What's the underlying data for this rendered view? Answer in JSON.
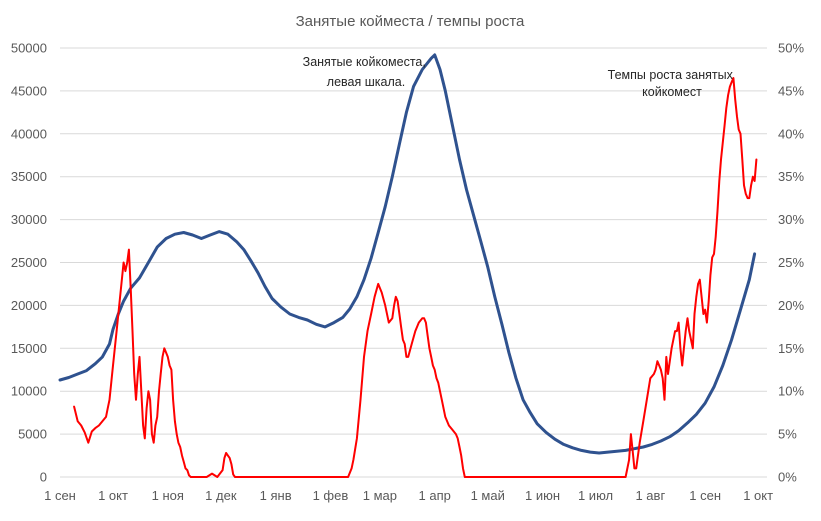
{
  "chart_data": {
    "type": "line",
    "title": "Занятые койместа / темпы роста",
    "x_axis": {
      "tick_labels": [
        "1 сен",
        "1 окт",
        "1 ноя",
        "1 дек",
        "1 янв",
        "1 фев",
        "1 мар",
        "1 апр",
        "1 май",
        "1 июн",
        "1 июл",
        "1 авг",
        "1 сен",
        "1 окт"
      ],
      "tick_day_index": [
        0,
        30,
        61,
        91,
        122,
        153,
        181,
        212,
        242,
        273,
        303,
        334,
        365,
        395
      ],
      "range_days": [
        0,
        400
      ]
    },
    "y_axis_left": {
      "min": 0,
      "max": 50000,
      "step": 5000,
      "tick_labels": [
        "0",
        "5000",
        "10000",
        "15000",
        "20000",
        "25000",
        "30000",
        "35000",
        "40000",
        "45000",
        "50000"
      ]
    },
    "y_axis_right": {
      "min": 0,
      "max": 0.5,
      "step": 0.05,
      "tick_labels": [
        "0%",
        "5%",
        "10%",
        "15%",
        "20%",
        "25%",
        "30%",
        "35%",
        "40%",
        "45%",
        "50%"
      ]
    },
    "grid": "horizontal",
    "colors": {
      "occupied": "#2f528f",
      "growth": "#ff0000",
      "grid": "#d9d9d9",
      "text": "#595959"
    },
    "annotations": [
      {
        "lines": [
          "Занятые койкоместа,",
          "левая шкала."
        ],
        "series": "occupied"
      },
      {
        "lines": [
          "Темпы роста занятых",
          "койкомест"
        ],
        "series": "growth"
      }
    ],
    "series": [
      {
        "id": "occupied",
        "axis": "left",
        "points": [
          [
            0,
            11300
          ],
          [
            5,
            11600
          ],
          [
            10,
            12000
          ],
          [
            15,
            12400
          ],
          [
            20,
            13200
          ],
          [
            24,
            14000
          ],
          [
            28,
            15500
          ],
          [
            30,
            17200
          ],
          [
            33,
            19000
          ],
          [
            36,
            20500
          ],
          [
            40,
            22000
          ],
          [
            45,
            23200
          ],
          [
            50,
            25000
          ],
          [
            55,
            26800
          ],
          [
            60,
            27800
          ],
          [
            65,
            28300
          ],
          [
            70,
            28500
          ],
          [
            75,
            28200
          ],
          [
            80,
            27800
          ],
          [
            85,
            28200
          ],
          [
            90,
            28600
          ],
          [
            95,
            28300
          ],
          [
            100,
            27400
          ],
          [
            104,
            26500
          ],
          [
            108,
            25200
          ],
          [
            112,
            23800
          ],
          [
            116,
            22200
          ],
          [
            120,
            20800
          ],
          [
            125,
            19800
          ],
          [
            130,
            19000
          ],
          [
            135,
            18600
          ],
          [
            140,
            18300
          ],
          [
            145,
            17800
          ],
          [
            150,
            17500
          ],
          [
            155,
            18000
          ],
          [
            160,
            18600
          ],
          [
            164,
            19600
          ],
          [
            168,
            21000
          ],
          [
            172,
            23000
          ],
          [
            176,
            25500
          ],
          [
            180,
            28500
          ],
          [
            184,
            31500
          ],
          [
            188,
            35000
          ],
          [
            192,
            38800
          ],
          [
            196,
            42500
          ],
          [
            200,
            45500
          ],
          [
            205,
            47500
          ],
          [
            210,
            48800
          ],
          [
            212,
            49200
          ],
          [
            215,
            47500
          ],
          [
            218,
            45000
          ],
          [
            222,
            41000
          ],
          [
            226,
            37000
          ],
          [
            230,
            33500
          ],
          [
            234,
            30500
          ],
          [
            238,
            27500
          ],
          [
            242,
            24500
          ],
          [
            246,
            21000
          ],
          [
            250,
            17800
          ],
          [
            254,
            14500
          ],
          [
            258,
            11500
          ],
          [
            262,
            9000
          ],
          [
            266,
            7500
          ],
          [
            270,
            6200
          ],
          [
            275,
            5200
          ],
          [
            280,
            4400
          ],
          [
            285,
            3800
          ],
          [
            290,
            3400
          ],
          [
            295,
            3100
          ],
          [
            300,
            2900
          ],
          [
            305,
            2800
          ],
          [
            310,
            2900
          ],
          [
            315,
            3000
          ],
          [
            320,
            3100
          ],
          [
            325,
            3300
          ],
          [
            330,
            3500
          ],
          [
            335,
            3800
          ],
          [
            340,
            4200
          ],
          [
            345,
            4700
          ],
          [
            350,
            5400
          ],
          [
            355,
            6300
          ],
          [
            360,
            7300
          ],
          [
            365,
            8600
          ],
          [
            370,
            10500
          ],
          [
            375,
            13000
          ],
          [
            380,
            16000
          ],
          [
            385,
            19500
          ],
          [
            390,
            23000
          ],
          [
            393,
            26000
          ]
        ]
      },
      {
        "id": "growth",
        "axis": "right",
        "points": [
          [
            8,
            0.082
          ],
          [
            10,
            0.065
          ],
          [
            12,
            0.06
          ],
          [
            14,
            0.052
          ],
          [
            16,
            0.04
          ],
          [
            18,
            0.053
          ],
          [
            20,
            0.057
          ],
          [
            22,
            0.06
          ],
          [
            24,
            0.065
          ],
          [
            26,
            0.07
          ],
          [
            27,
            0.08
          ],
          [
            28,
            0.09
          ],
          [
            30,
            0.13
          ],
          [
            32,
            0.17
          ],
          [
            34,
            0.21
          ],
          [
            36,
            0.25
          ],
          [
            37,
            0.24
          ],
          [
            38,
            0.25
          ],
          [
            39,
            0.265
          ],
          [
            40,
            0.22
          ],
          [
            41,
            0.17
          ],
          [
            42,
            0.12
          ],
          [
            43,
            0.09
          ],
          [
            44,
            0.12
          ],
          [
            45,
            0.14
          ],
          [
            46,
            0.1
          ],
          [
            47,
            0.06
          ],
          [
            48,
            0.045
          ],
          [
            49,
            0.08
          ],
          [
            50,
            0.1
          ],
          [
            51,
            0.09
          ],
          [
            52,
            0.05
          ],
          [
            53,
            0.04
          ],
          [
            54,
            0.06
          ],
          [
            55,
            0.07
          ],
          [
            56,
            0.1
          ],
          [
            57,
            0.12
          ],
          [
            58,
            0.14
          ],
          [
            59,
            0.15
          ],
          [
            60,
            0.145
          ],
          [
            61,
            0.14
          ],
          [
            62,
            0.13
          ],
          [
            63,
            0.125
          ],
          [
            64,
            0.09
          ],
          [
            65,
            0.065
          ],
          [
            66,
            0.05
          ],
          [
            67,
            0.04
          ],
          [
            68,
            0.035
          ],
          [
            69,
            0.025
          ],
          [
            70,
            0.018
          ],
          [
            71,
            0.01
          ],
          [
            72,
            0.008
          ],
          [
            73,
            0.002
          ],
          [
            74,
            0.0
          ],
          [
            83,
            0.0
          ],
          [
            86,
            0.004
          ],
          [
            89,
            0.0
          ],
          [
            92,
            0.008
          ],
          [
            93,
            0.022
          ],
          [
            94,
            0.028
          ],
          [
            95,
            0.025
          ],
          [
            96,
            0.022
          ],
          [
            97,
            0.015
          ],
          [
            98,
            0.003
          ],
          [
            99,
            0.0
          ],
          [
            163,
            0.0
          ],
          [
            165,
            0.01
          ],
          [
            166,
            0.02
          ],
          [
            168,
            0.045
          ],
          [
            170,
            0.09
          ],
          [
            172,
            0.14
          ],
          [
            174,
            0.17
          ],
          [
            176,
            0.19
          ],
          [
            178,
            0.21
          ],
          [
            180,
            0.225
          ],
          [
            182,
            0.215
          ],
          [
            184,
            0.2
          ],
          [
            186,
            0.18
          ],
          [
            188,
            0.185
          ],
          [
            189,
            0.2
          ],
          [
            190,
            0.21
          ],
          [
            191,
            0.205
          ],
          [
            192,
            0.19
          ],
          [
            193,
            0.175
          ],
          [
            194,
            0.16
          ],
          [
            195,
            0.155
          ],
          [
            196,
            0.14
          ],
          [
            197,
            0.14
          ],
          [
            199,
            0.155
          ],
          [
            201,
            0.17
          ],
          [
            203,
            0.18
          ],
          [
            205,
            0.185
          ],
          [
            206,
            0.185
          ],
          [
            207,
            0.18
          ],
          [
            208,
            0.165
          ],
          [
            209,
            0.15
          ],
          [
            210,
            0.14
          ],
          [
            211,
            0.13
          ],
          [
            212,
            0.125
          ],
          [
            213,
            0.115
          ],
          [
            214,
            0.11
          ],
          [
            215,
            0.1
          ],
          [
            216,
            0.09
          ],
          [
            218,
            0.07
          ],
          [
            220,
            0.06
          ],
          [
            222,
            0.055
          ],
          [
            224,
            0.05
          ],
          [
            225,
            0.045
          ],
          [
            226,
            0.035
          ],
          [
            227,
            0.025
          ],
          [
            228,
            0.01
          ],
          [
            229,
            0.0
          ],
          [
            320,
            0.0
          ],
          [
            322,
            0.02
          ],
          [
            323,
            0.05
          ],
          [
            324,
            0.03
          ],
          [
            325,
            0.01
          ],
          [
            326,
            0.01
          ],
          [
            328,
            0.04
          ],
          [
            330,
            0.065
          ],
          [
            332,
            0.09
          ],
          [
            334,
            0.115
          ],
          [
            336,
            0.12
          ],
          [
            337,
            0.125
          ],
          [
            338,
            0.135
          ],
          [
            339,
            0.13
          ],
          [
            340,
            0.125
          ],
          [
            341,
            0.115
          ],
          [
            342,
            0.09
          ],
          [
            343,
            0.14
          ],
          [
            344,
            0.12
          ],
          [
            346,
            0.15
          ],
          [
            348,
            0.17
          ],
          [
            349,
            0.17
          ],
          [
            350,
            0.18
          ],
          [
            351,
            0.15
          ],
          [
            352,
            0.13
          ],
          [
            353,
            0.15
          ],
          [
            354,
            0.17
          ],
          [
            355,
            0.185
          ],
          [
            356,
            0.17
          ],
          [
            357,
            0.16
          ],
          [
            358,
            0.15
          ],
          [
            359,
            0.19
          ],
          [
            360,
            0.21
          ],
          [
            361,
            0.225
          ],
          [
            362,
            0.23
          ],
          [
            363,
            0.21
          ],
          [
            364,
            0.19
          ],
          [
            365,
            0.195
          ],
          [
            366,
            0.18
          ],
          [
            367,
            0.205
          ],
          [
            368,
            0.235
          ],
          [
            369,
            0.256
          ],
          [
            370,
            0.26
          ],
          [
            371,
            0.28
          ],
          [
            372,
            0.31
          ],
          [
            373,
            0.345
          ],
          [
            374,
            0.37
          ],
          [
            375,
            0.39
          ],
          [
            376,
            0.41
          ],
          [
            377,
            0.43
          ],
          [
            378,
            0.445
          ],
          [
            379,
            0.455
          ],
          [
            380,
            0.46
          ],
          [
            381,
            0.465
          ],
          [
            382,
            0.44
          ],
          [
            383,
            0.42
          ],
          [
            384,
            0.405
          ],
          [
            385,
            0.4
          ],
          [
            386,
            0.37
          ],
          [
            387,
            0.34
          ],
          [
            388,
            0.33
          ],
          [
            389,
            0.325
          ],
          [
            390,
            0.325
          ],
          [
            391,
            0.34
          ],
          [
            392,
            0.35
          ],
          [
            393,
            0.345
          ],
          [
            394,
            0.37
          ]
        ]
      }
    ]
  }
}
